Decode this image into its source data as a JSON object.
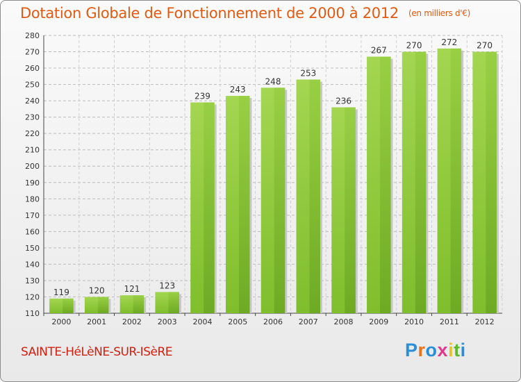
{
  "header": {
    "title": "Dotation Globale de Fonctionnement de 2000 à 2012",
    "unit": "(en milliers d'€)"
  },
  "footer": {
    "commune": "SAINTE-HéLèNE-SUR-ISèRE",
    "brand": "Proxiti",
    "brand_colors": [
      "#2a8fd8",
      "#e8741c",
      "#2a8fd8",
      "#e03a8c",
      "#e8c21c",
      "#5ab82a",
      "#2a8fd8"
    ]
  },
  "chart_data": {
    "type": "bar",
    "title": "Dotation Globale de Fonctionnement de 2000 à 2012",
    "subtitle": "(en milliers d'€)",
    "categories": [
      "2000",
      "2001",
      "2002",
      "2003",
      "2004",
      "2005",
      "2006",
      "2007",
      "2008",
      "2009",
      "2010",
      "2011",
      "2012"
    ],
    "values": [
      119,
      120,
      121,
      123,
      239,
      243,
      248,
      253,
      236,
      267,
      270,
      272,
      270
    ],
    "data_labels": [
      "119",
      "120",
      "121",
      "123",
      "239",
      "243",
      "248",
      "253",
      "236",
      "267",
      "270",
      "272",
      "270"
    ],
    "ylim": [
      110,
      280
    ],
    "yticks": [
      110,
      120,
      130,
      140,
      150,
      160,
      170,
      180,
      190,
      200,
      210,
      220,
      230,
      240,
      250,
      260,
      270,
      280
    ],
    "grid": true,
    "bar_color": "#7fbe2c",
    "bar_highlight": "#a4d651",
    "bar_shadow": "#c8c8c8"
  }
}
